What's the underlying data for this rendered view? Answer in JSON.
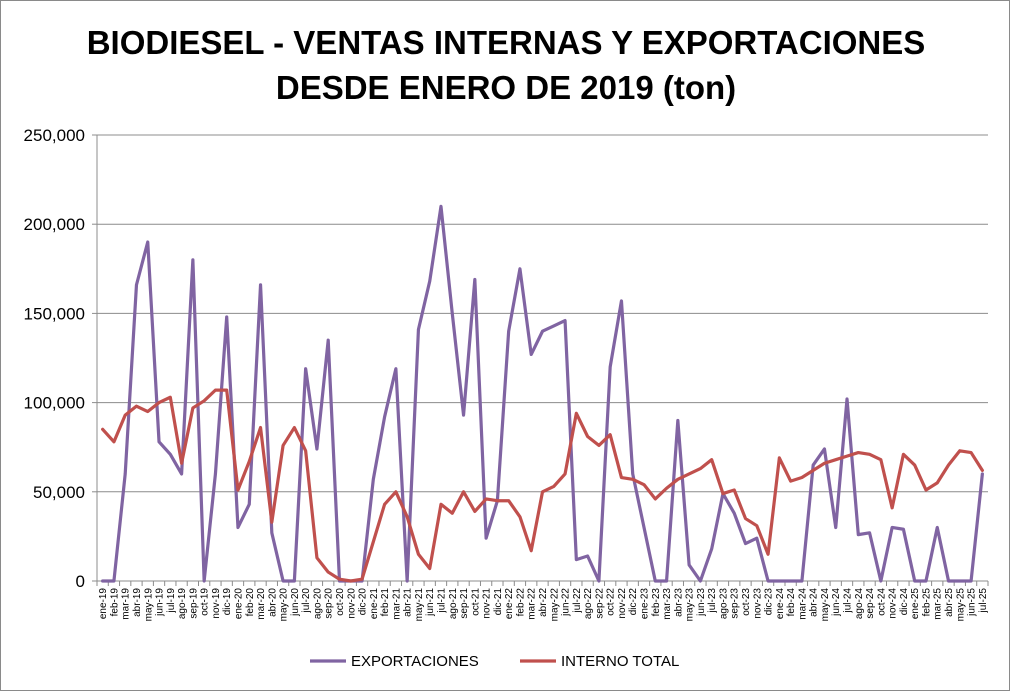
{
  "chart_data": {
    "type": "line",
    "title_line1": "BIODIESEL - VENTAS INTERNAS Y EXPORTACIONES",
    "title_line2": "DESDE ENERO DE 2019 (ton)",
    "ylim": [
      0,
      250000
    ],
    "yticks": [
      "0",
      "50,000",
      "100,000",
      "150,000",
      "200,000",
      "250,000"
    ],
    "ytick_values": [
      0,
      50000,
      100000,
      150000,
      200000,
      250000
    ],
    "grid": "horizontal",
    "legend_position": "bottom",
    "categories": [
      "ene-19",
      "feb-19",
      "mar-19",
      "abr-19",
      "may-19",
      "jun-19",
      "jul-19",
      "ago-19",
      "sep-19",
      "oct-19",
      "nov-19",
      "dic-19",
      "ene-20",
      "feb-20",
      "mar-20",
      "abr-20",
      "may-20",
      "jun-20",
      "jul-20",
      "ago-20",
      "sep-20",
      "oct-20",
      "nov-20",
      "dic-20",
      "ene-21",
      "feb-21",
      "mar-21",
      "abr-21",
      "may-21",
      "jun-21",
      "jul-21",
      "ago-21",
      "sep-21",
      "oct-21",
      "nov-21",
      "dic-21",
      "ene-22",
      "feb-22",
      "mar-22",
      "abr-22",
      "may-22",
      "jun-22",
      "jul-22",
      "ago-22",
      "sep-22",
      "oct-22",
      "nov-22",
      "dic-22",
      "ene-23",
      "feb-23",
      "mar-23",
      "abr-23",
      "may-23",
      "jun-23",
      "jul-23",
      "ago-23",
      "sep-23",
      "oct-23",
      "nov-23",
      "dic-23",
      "ene-24",
      "feb-24",
      "mar-24",
      "abr-24",
      "may-24",
      "jun-24",
      "jul-24",
      "ago-24",
      "sep-24",
      "oct-24",
      "nov-24",
      "dic-24",
      "ene-25",
      "feb-25",
      "mar-25",
      "abr-25",
      "may-25",
      "jun-25",
      "jul-25"
    ],
    "series": [
      {
        "name": "EXPORTACIONES",
        "color": "#8064a2",
        "values": [
          0,
          0,
          60000,
          166000,
          190000,
          78000,
          71000,
          60000,
          180000,
          0,
          60000,
          148000,
          30000,
          43000,
          166000,
          27000,
          0,
          0,
          119000,
          74000,
          135000,
          0,
          0,
          0,
          57000,
          92000,
          119000,
          0,
          141000,
          168000,
          210000,
          150000,
          93000,
          169000,
          24000,
          45000,
          140000,
          175000,
          127000,
          140000,
          143000,
          146000,
          12000,
          14000,
          0,
          120000,
          157000,
          60000,
          30000,
          0,
          0,
          90000,
          9000,
          0,
          18000,
          49000,
          38000,
          21000,
          24000,
          0,
          0,
          0,
          0,
          65000,
          74000,
          30000,
          102000,
          26000,
          27000,
          0,
          30000,
          29000,
          0,
          0,
          30000,
          0,
          0,
          0,
          60000
        ]
      },
      {
        "name": "INTERNO TOTAL",
        "color": "#c0504d",
        "values": [
          85000,
          78000,
          93000,
          98000,
          95000,
          100000,
          103000,
          66000,
          97000,
          101000,
          107000,
          107000,
          51000,
          67000,
          86000,
          33000,
          76000,
          86000,
          73000,
          13000,
          5000,
          1000,
          0,
          1000,
          22000,
          43000,
          50000,
          36000,
          15000,
          7000,
          43000,
          38000,
          50000,
          39000,
          46000,
          45000,
          45000,
          36000,
          17000,
          50000,
          53000,
          60000,
          94000,
          81000,
          76000,
          82000,
          58000,
          57000,
          54000,
          46000,
          52000,
          57000,
          60000,
          63000,
          68000,
          49000,
          51000,
          35000,
          31000,
          15000,
          69000,
          56000,
          58000,
          62000,
          66000,
          68000,
          70000,
          72000,
          71000,
          68000,
          41000,
          71000,
          65000,
          51000,
          55000,
          65000,
          73000,
          72000,
          62000
        ]
      }
    ]
  }
}
